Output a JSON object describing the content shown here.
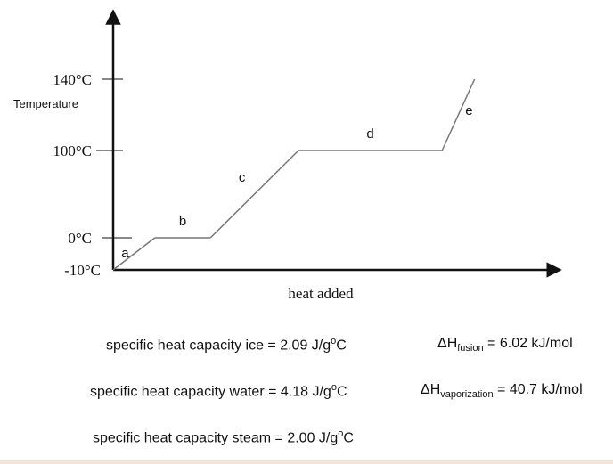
{
  "chart_data": {
    "type": "line",
    "title": "",
    "xlabel": "heat added",
    "ylabel": "Temperature",
    "y_ticks": [
      {
        "value": 140,
        "label": "140°C"
      },
      {
        "value": 100,
        "label": "100°C"
      },
      {
        "value": 0,
        "label": "0°C"
      },
      {
        "value": -10,
        "label": "-10°C"
      }
    ],
    "x": [
      0,
      9,
      21,
      40,
      71,
      78
    ],
    "y": [
      -10,
      0,
      0,
      100,
      100,
      140
    ],
    "segments": [
      {
        "label": "a",
        "from": 0,
        "to": 1
      },
      {
        "label": "b",
        "from": 1,
        "to": 2
      },
      {
        "label": "c",
        "from": 2,
        "to": 3
      },
      {
        "label": "d",
        "from": 3,
        "to": 4
      },
      {
        "label": "e",
        "from": 4,
        "to": 5
      }
    ],
    "grid": false,
    "line_color": "#777777"
  },
  "info": {
    "shc_ice_text": "specific heat capacity ice = 2.09 J/g",
    "shc_water_text": "specific heat capacity water =  4.18 J/g",
    "shc_steam_text": "specific heat capacity steam = 2.00 J/g",
    "deg": "o",
    "unit_c": "C",
    "delta": "ΔH",
    "fusion_sub": "fusion",
    "fusion_value": " = 6.02 kJ/mol",
    "vap_sub": "vaporization",
    "vap_value": " = 40.7 kJ/mol"
  }
}
